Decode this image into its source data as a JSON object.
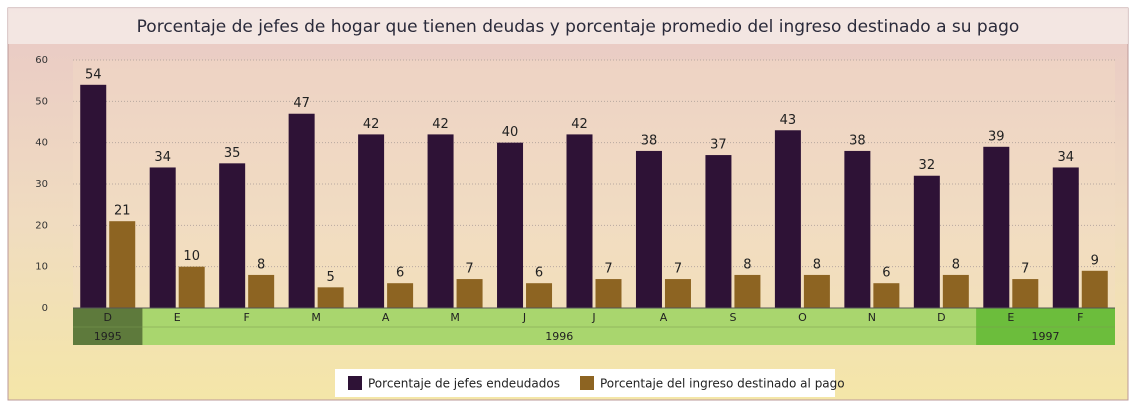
{
  "chart_data": {
    "type": "bar",
    "title": "Porcentaje de jefes de hogar que tienen deudas y porcentaje promedio del ingreso destinado a su pago",
    "categories": [
      "D",
      "E",
      "F",
      "M",
      "A",
      "M",
      "J",
      "J",
      "A",
      "S",
      "O",
      "N",
      "D",
      "E",
      "F"
    ],
    "x_groups": [
      {
        "label": "1995",
        "count": 1
      },
      {
        "label": "1996",
        "count": 12
      },
      {
        "label": "1997",
        "count": 2
      }
    ],
    "series": [
      {
        "name": "Porcentaje de jefes endeudados",
        "color": "#2e1236",
        "values": [
          54,
          34,
          35,
          47,
          42,
          42,
          40,
          42,
          38,
          37,
          43,
          38,
          32,
          39,
          34
        ]
      },
      {
        "name": "Porcentaje del ingreso destinado al pago",
        "color": "#8d6422",
        "values": [
          21,
          10,
          8,
          5,
          6,
          7,
          6,
          7,
          7,
          8,
          8,
          6,
          8,
          7,
          9
        ]
      }
    ],
    "ylim": [
      0,
      60
    ],
    "yticks": [
      0,
      10,
      20,
      30,
      40,
      50,
      60
    ],
    "grid": true,
    "legend": "bottom"
  }
}
